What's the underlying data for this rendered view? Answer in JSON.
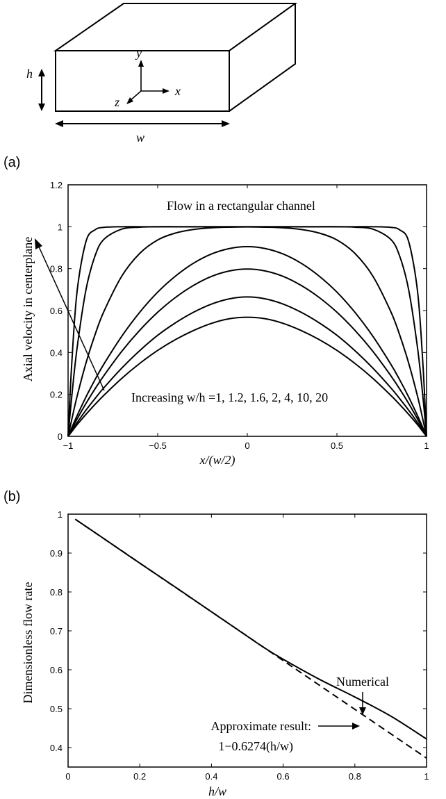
{
  "diagram": {
    "labels": {
      "h": "h",
      "w": "w",
      "x": "x",
      "y": "y",
      "z": "z"
    }
  },
  "chart_data": [
    {
      "panel": "(a)",
      "type": "line",
      "title": "Flow in a rectangular channel",
      "xlabel": "x/(w/2)",
      "ylabel": "Axial velocity in centerplane",
      "xlim": [
        -1,
        1
      ],
      "ylim": [
        0,
        1.2
      ],
      "xticks": [
        "−1",
        "−0.5",
        "0",
        "0.5",
        "1"
      ],
      "yticks": [
        "0",
        "0.2",
        "0.4",
        "0.6",
        "0.8",
        "1",
        "1.2"
      ],
      "annotation": "Increasing w/h =1, 1.2, 1.6, 2, 4, 10, 20",
      "x": [
        -1,
        -0.98,
        -0.95,
        -0.9,
        -0.85,
        -0.8,
        -0.7,
        -0.6,
        -0.5,
        -0.4,
        -0.3,
        -0.2,
        -0.1,
        0,
        0.1,
        0.2,
        0.3,
        0.4,
        0.5,
        0.6,
        0.7,
        0.8,
        0.85,
        0.9,
        0.95,
        0.98,
        1
      ],
      "series": [
        {
          "aspect": 1,
          "values": [
            0,
            0.022,
            0.055,
            0.105,
            0.152,
            0.196,
            0.277,
            0.348,
            0.41,
            0.462,
            0.505,
            0.539,
            0.561,
            0.568,
            0.561,
            0.539,
            0.505,
            0.462,
            0.41,
            0.348,
            0.277,
            0.196,
            0.152,
            0.105,
            0.055,
            0.022,
            0
          ]
        },
        {
          "aspect": 1.2,
          "values": [
            0,
            0.026,
            0.065,
            0.125,
            0.18,
            0.232,
            0.326,
            0.409,
            0.482,
            0.542,
            0.592,
            0.631,
            0.656,
            0.665,
            0.656,
            0.631,
            0.592,
            0.542,
            0.482,
            0.409,
            0.326,
            0.232,
            0.18,
            0.125,
            0.065,
            0.026,
            0
          ]
        },
        {
          "aspect": 1.6,
          "values": [
            0,
            0.033,
            0.082,
            0.157,
            0.226,
            0.29,
            0.406,
            0.506,
            0.592,
            0.663,
            0.72,
            0.763,
            0.789,
            0.798,
            0.789,
            0.763,
            0.72,
            0.663,
            0.592,
            0.506,
            0.406,
            0.29,
            0.226,
            0.157,
            0.082,
            0.033,
            0
          ]
        },
        {
          "aspect": 2,
          "values": [
            0,
            0.04,
            0.098,
            0.188,
            0.27,
            0.345,
            0.478,
            0.592,
            0.688,
            0.765,
            0.826,
            0.87,
            0.896,
            0.905,
            0.896,
            0.87,
            0.826,
            0.765,
            0.688,
            0.592,
            0.478,
            0.345,
            0.27,
            0.188,
            0.098,
            0.04,
            0
          ]
        },
        {
          "aspect": 4,
          "values": [
            0,
            0.078,
            0.19,
            0.35,
            0.484,
            0.596,
            0.765,
            0.873,
            0.937,
            0.97,
            0.987,
            0.995,
            0.998,
            0.999,
            0.998,
            0.995,
            0.987,
            0.97,
            0.937,
            0.873,
            0.765,
            0.596,
            0.484,
            0.35,
            0.19,
            0.078,
            0
          ]
        },
        {
          "aspect": 10,
          "values": [
            0,
            0.185,
            0.42,
            0.7,
            0.86,
            0.94,
            0.989,
            0.998,
            1.0,
            1.0,
            1.0,
            1.0,
            1.0,
            1.0,
            1.0,
            1.0,
            1.0,
            1.0,
            1.0,
            0.998,
            0.989,
            0.94,
            0.86,
            0.7,
            0.42,
            0.185,
            0
          ]
        },
        {
          "aspect": 20,
          "values": [
            0,
            0.34,
            0.69,
            0.93,
            0.985,
            0.997,
            1.0,
            1.0,
            1.0,
            1.0,
            1.0,
            1.0,
            1.0,
            1.0,
            1.0,
            1.0,
            1.0,
            1.0,
            1.0,
            1.0,
            1.0,
            0.997,
            0.985,
            0.93,
            0.69,
            0.34,
            0
          ]
        }
      ]
    },
    {
      "panel": "(b)",
      "type": "line",
      "xlabel": "h/w",
      "ylabel": "Dimensionless flow rate",
      "xlim": [
        0,
        1
      ],
      "ylim": [
        0.35,
        1
      ],
      "xticks": [
        "0",
        "0.2",
        "0.4",
        "0.6",
        "0.8",
        "1"
      ],
      "yticks": [
        "0.4",
        "0.5",
        "0.6",
        "0.7",
        "0.8",
        "0.9",
        "1"
      ],
      "series": [
        {
          "name": "Numerical",
          "style": "solid",
          "x": [
            0.02,
            0.1,
            0.2,
            0.3,
            0.4,
            0.5,
            0.55,
            0.6,
            0.7,
            0.8,
            0.9,
            1.0
          ],
          "values": [
            0.987,
            0.937,
            0.874,
            0.812,
            0.749,
            0.686,
            0.655,
            0.627,
            0.576,
            0.53,
            0.481,
            0.422
          ]
        },
        {
          "name": "Approximate result:",
          "formula": "1−0.6274(h/w)",
          "style": "dashed",
          "x": [
            0.02,
            1.0
          ],
          "values": [
            0.987,
            0.373
          ]
        }
      ]
    }
  ]
}
